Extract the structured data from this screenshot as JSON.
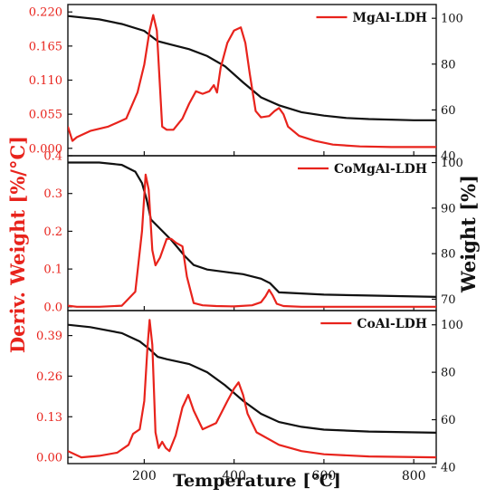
{
  "colors": {
    "deriv": "#e8231c",
    "weight": "#111111",
    "axis": "#111111"
  },
  "axes": {
    "ylabel_left": "Deriv. Weight [%/°C]",
    "ylabel_right": "Weight [%]",
    "xlabel": "Temperature [°C]"
  },
  "chart_data": [
    {
      "type": "line",
      "legend": "MgAl-LDH",
      "xlim": [
        30,
        850
      ],
      "xticks": [
        200,
        400,
        600,
        800
      ],
      "ylim_left": [
        -0.012,
        0.232
      ],
      "yticks_left": [
        {
          "v": 0.0,
          "label": "0.000"
        },
        {
          "v": 0.055,
          "label": "0.055"
        },
        {
          "v": 0.11,
          "label": "0.110"
        },
        {
          "v": 0.165,
          "label": "0.165"
        },
        {
          "v": 0.22,
          "label": "0.220"
        }
      ],
      "ylim_right": [
        40,
        106
      ],
      "yticks_right": [
        {
          "v": 40,
          "label": "40"
        },
        {
          "v": 60,
          "label": "60"
        },
        {
          "v": 80,
          "label": "80"
        },
        {
          "v": 100,
          "label": "100"
        }
      ],
      "deriv": {
        "x": [
          30,
          40,
          50,
          80,
          120,
          160,
          185,
          200,
          212,
          220,
          228,
          240,
          250,
          265,
          285,
          300,
          315,
          330,
          345,
          355,
          362,
          370,
          385,
          400,
          415,
          425,
          435,
          448,
          460,
          478,
          490,
          500,
          510,
          520,
          545,
          580,
          620,
          680,
          750,
          850
        ],
        "y": [
          0.035,
          0.012,
          0.018,
          0.028,
          0.035,
          0.048,
          0.09,
          0.135,
          0.19,
          0.215,
          0.19,
          0.035,
          0.03,
          0.03,
          0.048,
          0.072,
          0.092,
          0.088,
          0.092,
          0.102,
          0.09,
          0.13,
          0.17,
          0.19,
          0.195,
          0.17,
          0.12,
          0.06,
          0.05,
          0.052,
          0.06,
          0.065,
          0.055,
          0.035,
          0.02,
          0.012,
          0.006,
          0.003,
          0.002,
          0.002
        ]
      },
      "weight": {
        "x": [
          30,
          100,
          150,
          200,
          230,
          260,
          300,
          340,
          380,
          420,
          460,
          500,
          550,
          600,
          650,
          700,
          800,
          850
        ],
        "y": [
          101,
          99.5,
          97.5,
          94.5,
          90,
          88.5,
          86.5,
          83.5,
          79,
          72,
          65.5,
          62,
          59,
          57.5,
          56.5,
          56,
          55.5,
          55.5
        ]
      }
    },
    {
      "type": "line",
      "legend": "CoMgAl-LDH",
      "xlim": [
        30,
        850
      ],
      "xticks": [
        200,
        400,
        600,
        800
      ],
      "ylim_left": [
        -0.01,
        0.4
      ],
      "yticks_left": [
        {
          "v": 0.0,
          "label": "0.0"
        },
        {
          "v": 0.1,
          "label": "0.1"
        },
        {
          "v": 0.2,
          "label": "0.2"
        },
        {
          "v": 0.3,
          "label": "0.3"
        },
        {
          "v": 0.4,
          "label": "0.4"
        }
      ],
      "ylim_right": [
        67.5,
        101.5
      ],
      "yticks_right": [
        {
          "v": 70,
          "label": "70"
        },
        {
          "v": 80,
          "label": "80"
        },
        {
          "v": 90,
          "label": "90"
        },
        {
          "v": 100,
          "label": "100"
        }
      ],
      "deriv": {
        "x": [
          30,
          50,
          100,
          150,
          180,
          195,
          203,
          210,
          218,
          225,
          235,
          250,
          260,
          270,
          285,
          295,
          310,
          330,
          360,
          400,
          440,
          460,
          470,
          478,
          486,
          495,
          510,
          550,
          650,
          850
        ],
        "y": [
          0.003,
          0.0,
          0.0,
          0.003,
          0.04,
          0.2,
          0.35,
          0.31,
          0.15,
          0.11,
          0.13,
          0.18,
          0.18,
          0.17,
          0.16,
          0.08,
          0.01,
          0.004,
          0.002,
          0.001,
          0.004,
          0.012,
          0.028,
          0.045,
          0.03,
          0.008,
          0.002,
          0.0,
          0.0,
          0.0
        ]
      },
      "weight": {
        "x": [
          30,
          100,
          150,
          180,
          195,
          205,
          215,
          230,
          260,
          290,
          310,
          340,
          380,
          420,
          460,
          480,
          500,
          600,
          700,
          850
        ],
        "y": [
          100,
          100,
          99.5,
          98,
          95.5,
          92,
          87.5,
          86,
          83,
          79.5,
          77.5,
          76.5,
          76,
          75.5,
          74.5,
          73.5,
          71.5,
          71,
          70.8,
          70.5
        ]
      }
    },
    {
      "type": "line",
      "legend": "CoAl-LDH",
      "xlim": [
        30,
        850
      ],
      "xticks": [
        200,
        400,
        600,
        800
      ],
      "ylim_left": [
        -0.02,
        0.47
      ],
      "yticks_left": [
        {
          "v": 0.0,
          "label": "0.00"
        },
        {
          "v": 0.13,
          "label": "0.13"
        },
        {
          "v": 0.26,
          "label": "0.26"
        },
        {
          "v": 0.39,
          "label": "0.39"
        }
      ],
      "ylim_right": [
        41.5,
        106
      ],
      "yticks_right": [
        {
          "v": 40,
          "label": "40"
        },
        {
          "v": 60,
          "label": "60"
        },
        {
          "v": 80,
          "label": "80"
        },
        {
          "v": 100,
          "label": "100"
        }
      ],
      "deriv": {
        "x": [
          30,
          60,
          100,
          140,
          165,
          175,
          190,
          200,
          207,
          212,
          218,
          225,
          232,
          240,
          248,
          256,
          270,
          285,
          298,
          310,
          330,
          360,
          385,
          400,
          410,
          420,
          430,
          450,
          500,
          550,
          600,
          700,
          850
        ],
        "y": [
          0.02,
          0.0,
          0.005,
          0.015,
          0.04,
          0.075,
          0.09,
          0.18,
          0.35,
          0.44,
          0.36,
          0.08,
          0.03,
          0.05,
          0.03,
          0.02,
          0.07,
          0.16,
          0.2,
          0.15,
          0.09,
          0.11,
          0.18,
          0.22,
          0.24,
          0.2,
          0.14,
          0.08,
          0.04,
          0.02,
          0.01,
          0.003,
          0.0
        ]
      },
      "weight": {
        "x": [
          30,
          80,
          150,
          190,
          210,
          230,
          250,
          300,
          340,
          380,
          420,
          460,
          500,
          550,
          600,
          700,
          850
        ],
        "y": [
          100,
          99,
          96.5,
          93,
          90,
          86.5,
          85.5,
          83.5,
          80,
          74.5,
          68,
          62.5,
          59,
          57,
          55.8,
          55,
          54.5
        ]
      }
    }
  ]
}
